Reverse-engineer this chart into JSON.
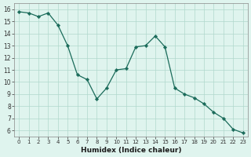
{
  "x": [
    0,
    1,
    2,
    3,
    4,
    5,
    6,
    7,
    8,
    9,
    10,
    11,
    12,
    13,
    14,
    15,
    16,
    17,
    18,
    19,
    20,
    21,
    22,
    23
  ],
  "y": [
    15.8,
    15.7,
    15.4,
    15.7,
    14.7,
    13.0,
    10.6,
    10.2,
    8.6,
    9.5,
    11.0,
    11.1,
    12.9,
    13.0,
    13.8,
    12.9,
    9.5,
    9.0,
    8.7,
    8.2,
    7.5,
    7.0,
    6.1,
    5.8
  ],
  "xlabel": "Humidex (Indice chaleur)",
  "xlim": [
    -0.5,
    23.5
  ],
  "ylim": [
    5.5,
    16.5
  ],
  "bg_color": "#dff4ee",
  "line_color": "#1a6b5a",
  "grid_color": "#b0d8cc",
  "xtick_labels": [
    "0",
    "1",
    "2",
    "3",
    "4",
    "5",
    "6",
    "7",
    "8",
    "9",
    "10",
    "11",
    "12",
    "13",
    "14",
    "15",
    "16",
    "17",
    "18",
    "19",
    "20",
    "21",
    "22",
    "23"
  ],
  "ytick_vals": [
    6,
    7,
    8,
    9,
    10,
    11,
    12,
    13,
    14,
    15,
    16
  ],
  "figsize": [
    3.2,
    2.0
  ],
  "dpi": 100
}
